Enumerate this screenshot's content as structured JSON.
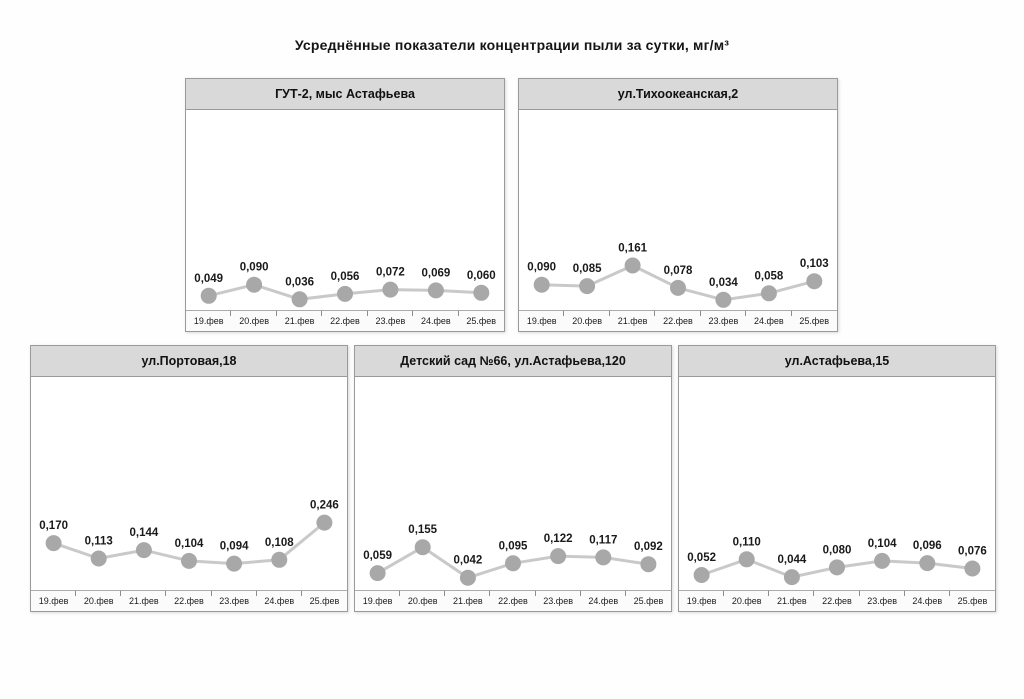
{
  "page": {
    "title": "Усреднённые показатели концентрации пыли за сутки, мг/м³"
  },
  "style": {
    "line_color": "#c9c9c9",
    "marker_color": "#a8a8a8",
    "label_color": "#1a1a1a",
    "header_bg": "#d9d9d9"
  },
  "categories": [
    "19.фев",
    "20.фев",
    "21.фев",
    "22.фев",
    "23.фев",
    "24.фев",
    "25.фев"
  ],
  "chart_data": [
    {
      "type": "line",
      "title": "ГУТ-2, мыс Астафьева",
      "x": [
        "19.фев",
        "20.фев",
        "21.фев",
        "22.фев",
        "23.фев",
        "24.фев",
        "25.фев"
      ],
      "values": [
        0.049,
        0.09,
        0.036,
        0.056,
        0.072,
        0.069,
        0.06
      ],
      "point_labels": [
        "0,049",
        "0,090",
        "0,036",
        "0,056",
        "0,072",
        "0,069",
        "0,060"
      ],
      "ylim": [
        0,
        0.75
      ],
      "grid": false,
      "legend": false
    },
    {
      "type": "line",
      "title": "ул.Тихоокеанская,2",
      "x": [
        "19.фев",
        "20.фев",
        "21.фев",
        "22.фев",
        "23.фев",
        "24.фев",
        "25.фев"
      ],
      "values": [
        0.09,
        0.085,
        0.161,
        0.078,
        0.034,
        0.058,
        0.103
      ],
      "point_labels": [
        "0,090",
        "0,085",
        "0,161",
        "0,078",
        "0,034",
        "0,058",
        "0,103"
      ],
      "ylim": [
        0,
        0.75
      ],
      "grid": false,
      "legend": false
    },
    {
      "type": "line",
      "title": "ул.Портовая,18",
      "x": [
        "19.фев",
        "20.фев",
        "21.фев",
        "22.фев",
        "23.фев",
        "24.фев",
        "25.фев"
      ],
      "values": [
        0.17,
        0.113,
        0.144,
        0.104,
        0.094,
        0.108,
        0.246
      ],
      "point_labels": [
        "0,170",
        "0,113",
        "0,144",
        "0,104",
        "0,094",
        "0,108",
        "0,246"
      ],
      "ylim": [
        0,
        0.75
      ],
      "grid": false,
      "legend": false
    },
    {
      "type": "line",
      "title": "Детский сад №66, ул.Астафьева,120",
      "x": [
        "19.фев",
        "20.фев",
        "21.фев",
        "22.фев",
        "23.фев",
        "24.фев",
        "25.фев"
      ],
      "values": [
        0.059,
        0.155,
        0.042,
        0.095,
        0.122,
        0.117,
        0.092
      ],
      "point_labels": [
        "0,059",
        "0,155",
        "0,042",
        "0,095",
        "0,122",
        "0,117",
        "0,092"
      ],
      "ylim": [
        0,
        0.75
      ],
      "grid": false,
      "legend": false
    },
    {
      "type": "line",
      "title": "ул.Астафьева,15",
      "x": [
        "19.фев",
        "20.фев",
        "21.фев",
        "22.фев",
        "23.фев",
        "24.фев",
        "25.фев"
      ],
      "values": [
        0.052,
        0.11,
        0.044,
        0.08,
        0.104,
        0.096,
        0.076
      ],
      "point_labels": [
        "0,052",
        "0,110",
        "0,044",
        "0,080",
        "0,104",
        "0,096",
        "0,076"
      ],
      "ylim": [
        0,
        0.75
      ],
      "grid": false,
      "legend": false
    }
  ]
}
